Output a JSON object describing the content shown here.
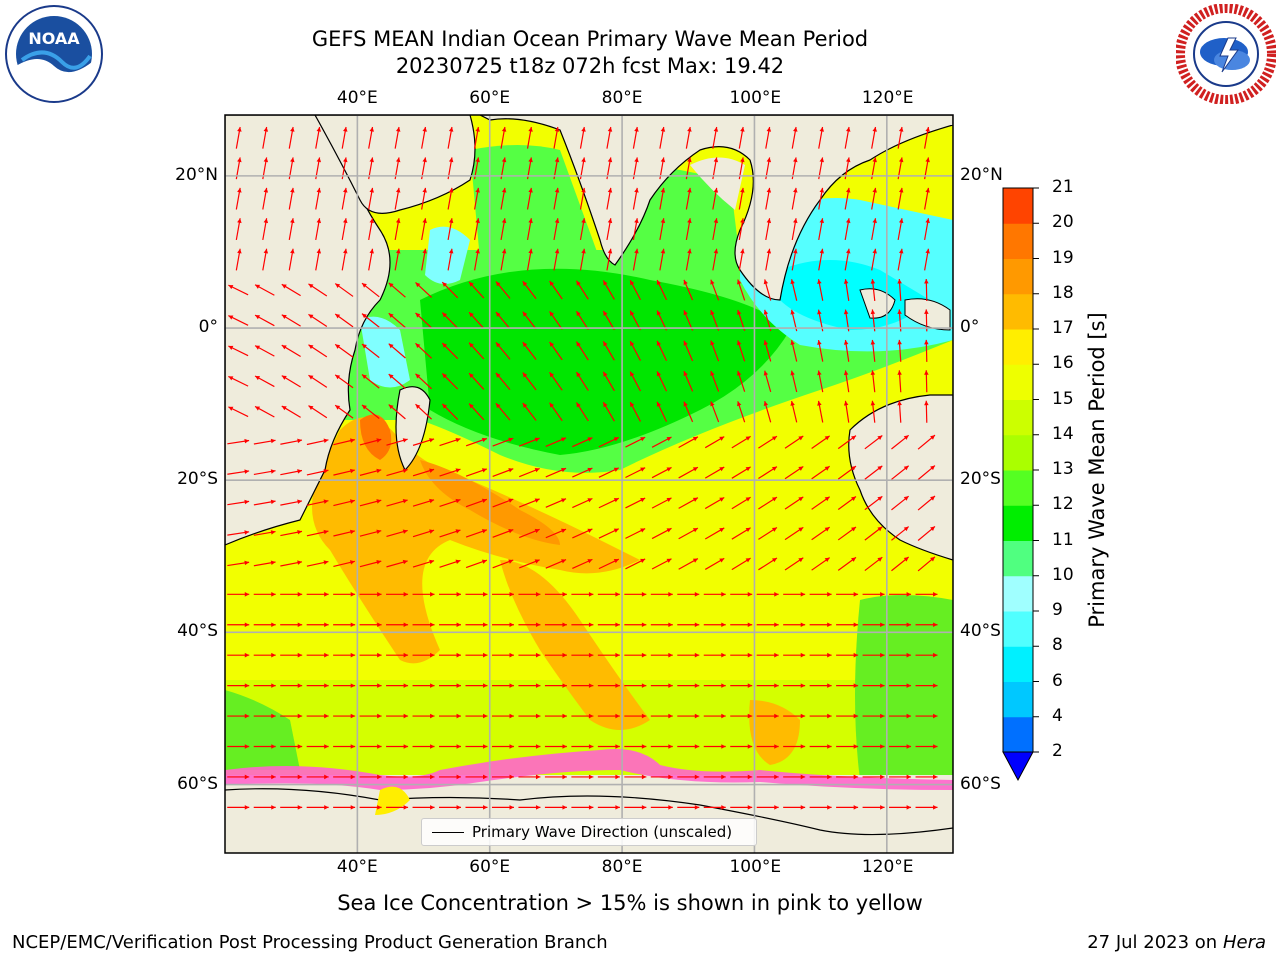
{
  "title": {
    "line1": "GEFS MEAN Indian Ocean Primary Wave Mean Period",
    "line2": "20230725 t18z 072h fcst   Max: 19.42"
  },
  "logos": {
    "left": {
      "name": "noaa-logo",
      "text": "NOAA",
      "ring_text": "NATIONAL OCEANIC AND ATMOSPHERIC ADMINISTRATION · U.S. DEPARTMENT OF COMMERCE"
    },
    "right": {
      "name": "nws-logo",
      "ring_text": "NATIONAL WEATHER SERVICE"
    }
  },
  "map": {
    "top_lon_labels": [
      "40°E",
      "60°E",
      "80°E",
      "100°E",
      "120°E"
    ],
    "bottom_lon_labels": [
      "40°E",
      "60°E",
      "80°E",
      "100°E",
      "120°E"
    ],
    "left_lat_labels": [
      "20°N",
      "0°",
      "20°S",
      "40°S",
      "60°S"
    ],
    "right_lat_labels": [
      "20°N",
      "0°",
      "20°S",
      "40°S",
      "60°S"
    ],
    "lon_range": [
      20,
      130
    ],
    "lat_range": [
      -69,
      28
    ],
    "gridlines_lon": [
      40,
      60,
      80,
      100,
      120
    ],
    "gridlines_lat": [
      20,
      0,
      -20,
      -40,
      -60
    ],
    "grid": true,
    "land_color": "#efecdc",
    "arrow_color": "#ff0000",
    "legend": {
      "label": "Primary Wave Direction (unscaled)",
      "placement": "bottom-center"
    }
  },
  "colorbar": {
    "label": "Primary Wave Mean Period [s]",
    "ticks": [
      "2",
      "4",
      "6",
      "8",
      "9",
      "10",
      "11",
      "12",
      "13",
      "14",
      "15",
      "16",
      "17",
      "18",
      "19",
      "20",
      "21"
    ],
    "colors": [
      "#0070ff",
      "#00c8ff",
      "#00f0ff",
      "#50ffff",
      "#a0ffff",
      "#50ff80",
      "#00ee00",
      "#55ff22",
      "#aaff00",
      "#ccff00",
      "#eeff00",
      "#ffee00",
      "#ffbb00",
      "#ff9900",
      "#ff7700",
      "#ff4400",
      "#ff1100",
      "#ff0000"
    ],
    "extend_color": "#0000ff"
  },
  "footnote": "Sea Ice Concentration > 15% is shown in pink to yellow",
  "footer": {
    "left": "NCEP/EMC/Verification Post Processing Product Generation Branch",
    "right_prefix": "27 Jul 2023 on ",
    "right_host": "Hera"
  }
}
